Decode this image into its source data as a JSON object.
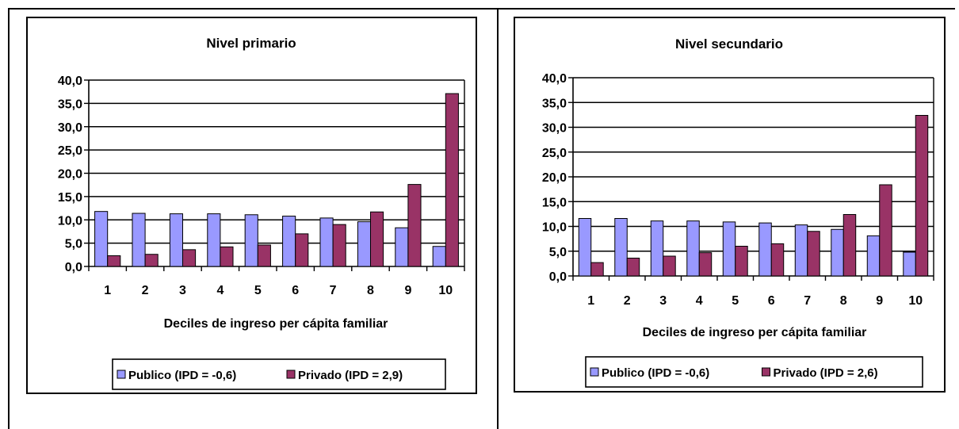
{
  "chart_data": [
    {
      "type": "bar",
      "title": "Nivel primario",
      "xlabel": "Deciles de ingreso per cápita familiar",
      "ylabel": "",
      "ylim": [
        0,
        40
      ],
      "ytick_labels": [
        "0,0",
        "5,0",
        "10,0",
        "15,0",
        "20,0",
        "25,0",
        "30,0",
        "35,0",
        "40,0"
      ],
      "categories": [
        "1",
        "2",
        "3",
        "4",
        "5",
        "6",
        "7",
        "8",
        "9",
        "10"
      ],
      "grid": true,
      "legend_position": "bottom",
      "series": [
        {
          "name": "Publico (IPD = -0,6)",
          "color": "#9999ff",
          "values": [
            11.8,
            11.4,
            11.3,
            11.3,
            11.1,
            10.8,
            10.4,
            9.6,
            8.3,
            4.3
          ]
        },
        {
          "name": "Privado (IPD = 2,9)",
          "color": "#993366",
          "values": [
            2.3,
            2.6,
            3.6,
            4.2,
            4.6,
            7.0,
            9.0,
            11.7,
            17.6,
            37.1
          ]
        }
      ]
    },
    {
      "type": "bar",
      "title": "Nivel secundario",
      "xlabel": "Deciles de ingreso per cápita familiar",
      "ylabel": "",
      "ylim": [
        0,
        40
      ],
      "ytick_labels": [
        "0,0",
        "5,0",
        "10,0",
        "15,0",
        "20,0",
        "25,0",
        "30,0",
        "35,0",
        "40,0"
      ],
      "categories": [
        "1",
        "2",
        "3",
        "4",
        "5",
        "6",
        "7",
        "8",
        "9",
        "10"
      ],
      "grid": true,
      "legend_position": "bottom",
      "series": [
        {
          "name": "Publico (IPD = -0,6)",
          "color": "#9999ff",
          "values": [
            11.6,
            11.6,
            11.1,
            11.1,
            10.9,
            10.7,
            10.3,
            9.4,
            8.1,
            4.8
          ]
        },
        {
          "name": "Privado (IPD = 2,6)",
          "color": "#993366",
          "values": [
            2.7,
            3.6,
            4.0,
            4.7,
            6.0,
            6.5,
            9.0,
            12.4,
            18.4,
            32.4
          ]
        }
      ]
    }
  ]
}
